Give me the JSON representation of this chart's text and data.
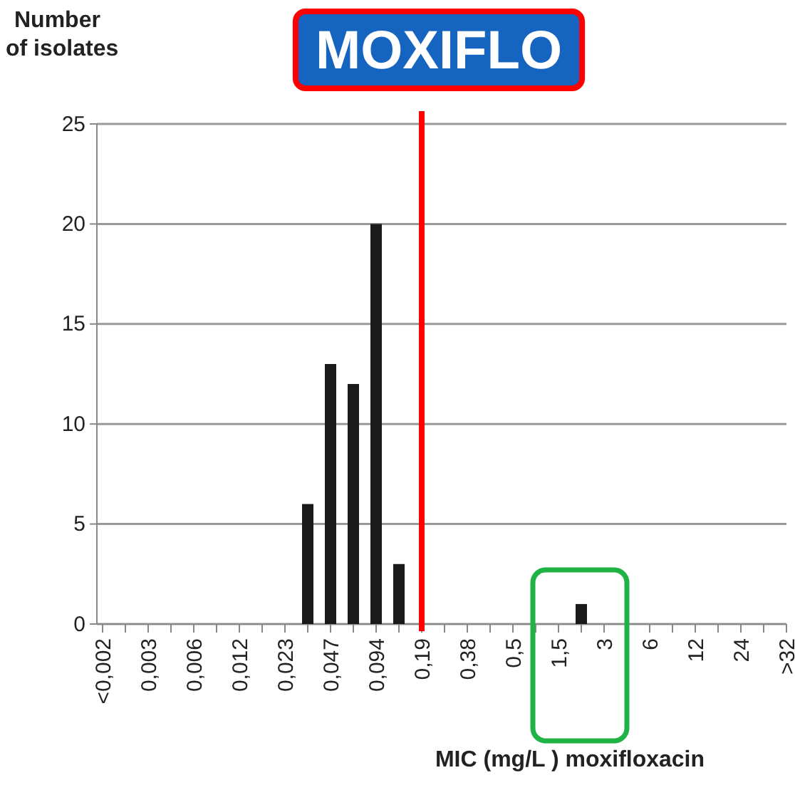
{
  "chart_data": {
    "type": "bar",
    "ylabel": "Number\nof isolates",
    "xlabel": "MIC (mg/L ) moxifloxacin",
    "categories": [
      "<0,002",
      null,
      "0,003",
      null,
      "0,006",
      null,
      "0,012",
      null,
      "0,023",
      null,
      "0,047",
      null,
      "0,094",
      null,
      "0,19",
      null,
      "0,38",
      null,
      "0,5",
      null,
      "1,5",
      null,
      "3",
      null,
      "6",
      null,
      "12",
      null,
      "24",
      null,
      ">32"
    ],
    "values": [
      0,
      0,
      0,
      0,
      0,
      0,
      0,
      0,
      0,
      6,
      13,
      12,
      20,
      3,
      0,
      0,
      0,
      0,
      0,
      0,
      0,
      1,
      0,
      0,
      0,
      0,
      0,
      0,
      0,
      0,
      0
    ],
    "color": "#1a1a1a",
    "ylim": [
      0,
      25
    ],
    "yticks": [
      0,
      5,
      10,
      15,
      20,
      25
    ],
    "grid": "y",
    "ref_lines": [
      {
        "axis": "x",
        "value": "0,19",
        "label": "MOXIFLO",
        "color": "#ff0000"
      }
    ]
  }
}
